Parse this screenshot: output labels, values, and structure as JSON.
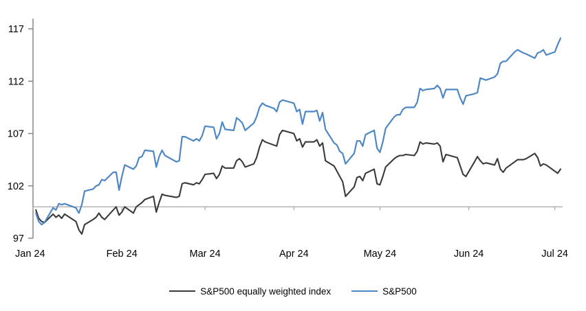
{
  "chart_data": {
    "type": "line",
    "title": "",
    "xlabel": "",
    "ylabel": "",
    "x_axis": {
      "unit": "date",
      "start_label_month": "Jan 2024",
      "tick_labels": [
        "Jan 24",
        "Feb 24",
        "Mar 24",
        "Apr 24",
        "May 24",
        "Jun 24",
        "Jul 24"
      ],
      "tick_day_offsets": [
        0,
        31,
        60,
        91,
        121,
        152,
        182
      ],
      "range_days": [
        0,
        184
      ]
    },
    "y_axis": {
      "ticks": [
        97,
        102,
        107,
        112,
        117
      ],
      "range": [
        97,
        118
      ],
      "baseline_value": 100,
      "grid": false
    },
    "legend_position": "bottom-center",
    "x_days": [
      1,
      2,
      3,
      4,
      7,
      8,
      9,
      10,
      11,
      15,
      16,
      17,
      18,
      21,
      22,
      23,
      24,
      25,
      28,
      29,
      30,
      31,
      32,
      35,
      36,
      37,
      38,
      39,
      42,
      43,
      44,
      45,
      46,
      50,
      51,
      52,
      53,
      56,
      57,
      58,
      59,
      60,
      63,
      64,
      65,
      66,
      67,
      70,
      71,
      72,
      73,
      74,
      77,
      78,
      79,
      80,
      81,
      84,
      85,
      86,
      87,
      91,
      92,
      93,
      94,
      95,
      98,
      99,
      100,
      101,
      102,
      105,
      106,
      107,
      108,
      109,
      112,
      113,
      114,
      115,
      116,
      119,
      120,
      121,
      122,
      123,
      126,
      127,
      128,
      129,
      130,
      133,
      134,
      135,
      136,
      137,
      140,
      141,
      142,
      143,
      144,
      148,
      149,
      150,
      151,
      154,
      155,
      156,
      157,
      158,
      161,
      162,
      163,
      164,
      165,
      168,
      169,
      171,
      172,
      175,
      176,
      177,
      178,
      179,
      182,
      183,
      184
    ],
    "series": [
      {
        "name": "S&P500 equally weighted index",
        "color": "#3a3a3a",
        "stroke_width": 2.1,
        "values": [
          99.7,
          98.9,
          98.6,
          98.5,
          99.3,
          99.0,
          99.2,
          98.9,
          99.3,
          98.6,
          97.8,
          97.4,
          98.3,
          98.8,
          99.0,
          99.4,
          99.0,
          98.8,
          99.7,
          100.0,
          99.2,
          99.5,
          100.0,
          99.4,
          100.0,
          100.2,
          100.4,
          100.7,
          101.0,
          99.5,
          100.4,
          101.2,
          101.1,
          100.9,
          101.0,
          102.2,
          102.3,
          102.1,
          102.3,
          102.2,
          102.6,
          103.1,
          103.2,
          102.7,
          103.1,
          103.9,
          103.7,
          103.7,
          104.4,
          104.6,
          104.3,
          103.8,
          104.1,
          104.7,
          105.7,
          106.4,
          106.2,
          105.9,
          105.8,
          106.9,
          107.3,
          107.0,
          106.3,
          106.5,
          105.7,
          106.2,
          106.2,
          106.4,
          105.8,
          106.1,
          104.4,
          103.9,
          103.4,
          102.9,
          102.4,
          101.0,
          101.9,
          102.8,
          102.9,
          102.5,
          103.2,
          103.6,
          102.2,
          102.1,
          102.9,
          103.8,
          104.6,
          104.8,
          104.9,
          104.9,
          105.0,
          104.9,
          105.3,
          106.2,
          106.0,
          106.1,
          106.0,
          106.1,
          105.8,
          104.3,
          105.0,
          104.7,
          103.9,
          103.1,
          102.9,
          104.3,
          104.8,
          104.4,
          104.1,
          104.2,
          104.0,
          104.6,
          103.6,
          103.3,
          103.7,
          104.3,
          104.5,
          104.5,
          104.6,
          105.1,
          104.7,
          103.9,
          104.1,
          104.0,
          103.4,
          103.2,
          103.6
        ]
      },
      {
        "name": "S&P500",
        "color": "#4e87c3",
        "stroke_width": 2.2,
        "values": [
          99.4,
          98.6,
          98.3,
          98.5,
          99.9,
          99.7,
          100.3,
          100.2,
          100.3,
          99.9,
          99.4,
          100.2,
          101.5,
          101.7,
          102.0,
          102.1,
          102.6,
          102.5,
          103.3,
          103.3,
          101.6,
          102.9,
          104.0,
          103.6,
          103.9,
          104.7,
          104.8,
          105.4,
          105.3,
          103.8,
          104.8,
          105.4,
          104.9,
          104.3,
          104.4,
          106.7,
          106.7,
          106.3,
          106.5,
          106.3,
          106.8,
          107.7,
          107.6,
          106.5,
          107.0,
          108.1,
          107.4,
          107.3,
          108.5,
          108.3,
          108.0,
          107.3,
          108.0,
          108.6,
          109.5,
          109.9,
          109.7,
          109.4,
          109.1,
          110.0,
          110.2,
          109.9,
          109.1,
          109.3,
          107.9,
          109.1,
          109.1,
          109.2,
          108.2,
          109.0,
          107.4,
          106.1,
          105.9,
          105.3,
          105.1,
          104.1,
          105.1,
          106.3,
          106.3,
          105.8,
          106.9,
          107.3,
          105.6,
          105.2,
          106.2,
          107.5,
          108.6,
          108.8,
          108.8,
          109.3,
          109.5,
          109.5,
          110.0,
          111.3,
          111.1,
          111.2,
          111.3,
          111.6,
          111.3,
          110.4,
          111.2,
          111.2,
          110.4,
          109.8,
          110.6,
          110.8,
          110.9,
          112.3,
          112.2,
          112.1,
          112.4,
          112.7,
          113.7,
          113.9,
          113.9,
          114.8,
          115.0,
          114.7,
          114.6,
          114.2,
          114.7,
          114.8,
          115.0,
          114.5,
          114.8,
          115.5,
          116.1
        ]
      }
    ],
    "colors": {
      "axis_line": "#7f7f7f",
      "baseline": "#a6a6a6",
      "tick_label": "#000000"
    }
  },
  "legend": {
    "items": [
      {
        "label": "S&P500 equally weighted index",
        "color": "#3a3a3a"
      },
      {
        "label": "S&P500",
        "color": "#4e87c3"
      }
    ]
  }
}
